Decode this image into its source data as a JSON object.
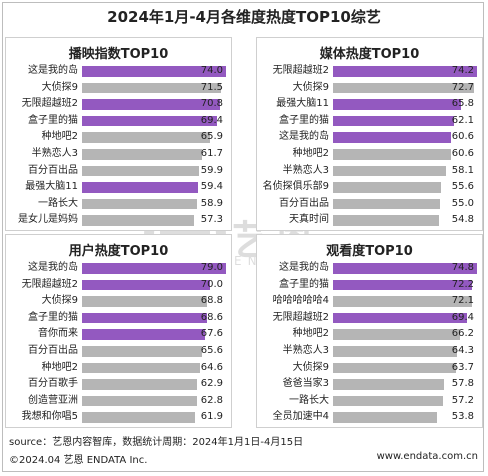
{
  "title": "2024年1月-4月各维度热度TOP10综艺",
  "colors": {
    "highlight": "#9359c0",
    "normal": "#b5b5b5"
  },
  "chart_data": [
    {
      "type": "bar",
      "title": "播映指数TOP10",
      "categories": [
        "这是我的岛",
        "大侦探9",
        "无限超越班2",
        "盒子里的猫",
        "种地吧2",
        "半熟恋人3",
        "百分百出品",
        "最强大脑11",
        "一路长大",
        "是女儿是妈妈"
      ],
      "values": [
        74.0,
        71.5,
        70.8,
        69.4,
        65.9,
        61.7,
        59.9,
        59.4,
        58.9,
        57.3
      ],
      "value_labels": [
        "74.0",
        "71.5",
        "70.8",
        "69.4",
        "65.9",
        "61.7",
        "59.9",
        "59.4",
        "58.9",
        "57.3"
      ],
      "highlight": [
        true,
        false,
        true,
        true,
        false,
        false,
        false,
        true,
        false,
        false
      ]
    },
    {
      "type": "bar",
      "title": "媒体热度TOP10",
      "categories": [
        "无限超越班2",
        "大侦探9",
        "最强大脑11",
        "盒子里的猫",
        "这是我的岛",
        "种地吧2",
        "半熟恋人3",
        "名侦探俱乐部9",
        "百分百出品",
        "天真时间"
      ],
      "values": [
        74.2,
        72.7,
        65.8,
        62.1,
        60.6,
        60.6,
        58.1,
        55.6,
        55.0,
        54.8
      ],
      "value_labels": [
        "74.2",
        "72.7",
        "65.8",
        "62.1",
        "60.6",
        "60.6",
        "58.1",
        "55.6",
        "55.0",
        "54.8"
      ],
      "highlight": [
        true,
        false,
        true,
        true,
        true,
        false,
        false,
        false,
        false,
        false
      ]
    },
    {
      "type": "bar",
      "title": "用户热度TOP10",
      "categories": [
        "这是我的岛",
        "无限超越班2",
        "大侦探9",
        "盒子里的猫",
        "音你而来",
        "百分百出品",
        "种地吧2",
        "百分百歌手",
        "创造营亚洲",
        "我想和你唱5"
      ],
      "values": [
        79.0,
        70.0,
        68.8,
        68.6,
        67.6,
        65.6,
        64.6,
        62.9,
        62.8,
        61.9
      ],
      "value_labels": [
        "79.0",
        "70.0",
        "68.8",
        "68.6",
        "67.6",
        "65.6",
        "64.6",
        "62.9",
        "62.8",
        "61.9"
      ],
      "highlight": [
        true,
        true,
        false,
        true,
        true,
        false,
        false,
        false,
        false,
        false
      ]
    },
    {
      "type": "bar",
      "title": "观看度TOP10",
      "categories": [
        "这是我的岛",
        "盒子里的猫",
        "哈哈哈哈哈4",
        "无限超越班2",
        "种地吧2",
        "半熟恋人3",
        "大侦探9",
        "爸爸当家3",
        "一路长大",
        "全员加速中4"
      ],
      "values": [
        74.8,
        72.2,
        72.1,
        69.4,
        66.2,
        64.3,
        63.7,
        57.8,
        57.2,
        53.8
      ],
      "value_labels": [
        "74.8",
        "72.2",
        "72.1",
        "69.4",
        "66.2",
        "64.3",
        "63.7",
        "57.8",
        "57.2",
        "53.8"
      ],
      "highlight": [
        true,
        true,
        false,
        true,
        false,
        false,
        false,
        false,
        false,
        false
      ]
    }
  ],
  "watermark": {
    "text": "艺恩",
    "sub": "ENDATA"
  },
  "footer": {
    "source": "source：艺恩内容智库，数据统计周期：2024年1月1日-4月15日",
    "copyright": "©2024.04 艺恩 ENDATA Inc.",
    "website": "www.endata.com.cn"
  }
}
